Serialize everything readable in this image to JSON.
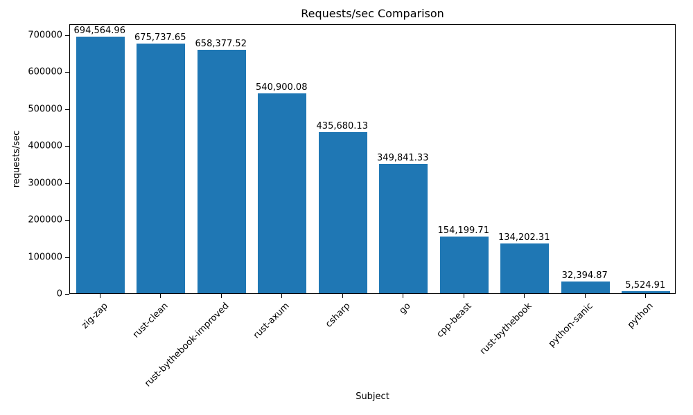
{
  "chart_data": {
    "type": "bar",
    "title": "Requests/sec Comparison",
    "xlabel": "Subject",
    "ylabel": "requests/sec",
    "categories": [
      "zig-zap",
      "rust-clean",
      "rust-bythebook-improved",
      "rust-axum",
      "csharp",
      "go",
      "cpp-beast",
      "rust-bythebook",
      "python-sanic",
      "python"
    ],
    "values": [
      694564.96,
      675737.65,
      658377.52,
      540900.08,
      435680.13,
      349841.33,
      154199.71,
      134202.31,
      32394.87,
      5524.91
    ],
    "value_labels": [
      "694,564.96",
      "675,737.65",
      "658,377.52",
      "540,900.08",
      "435,680.13",
      "349,841.33",
      "154,199.71",
      "134,202.31",
      "32,394.87",
      "5,524.91"
    ],
    "yticks": [
      0,
      100000,
      200000,
      300000,
      400000,
      500000,
      600000,
      700000
    ],
    "ylim": [
      0,
      729300
    ],
    "bar_color": "#1f77b4",
    "bar_width_fraction": 0.8,
    "grid": false,
    "legend": null
  }
}
